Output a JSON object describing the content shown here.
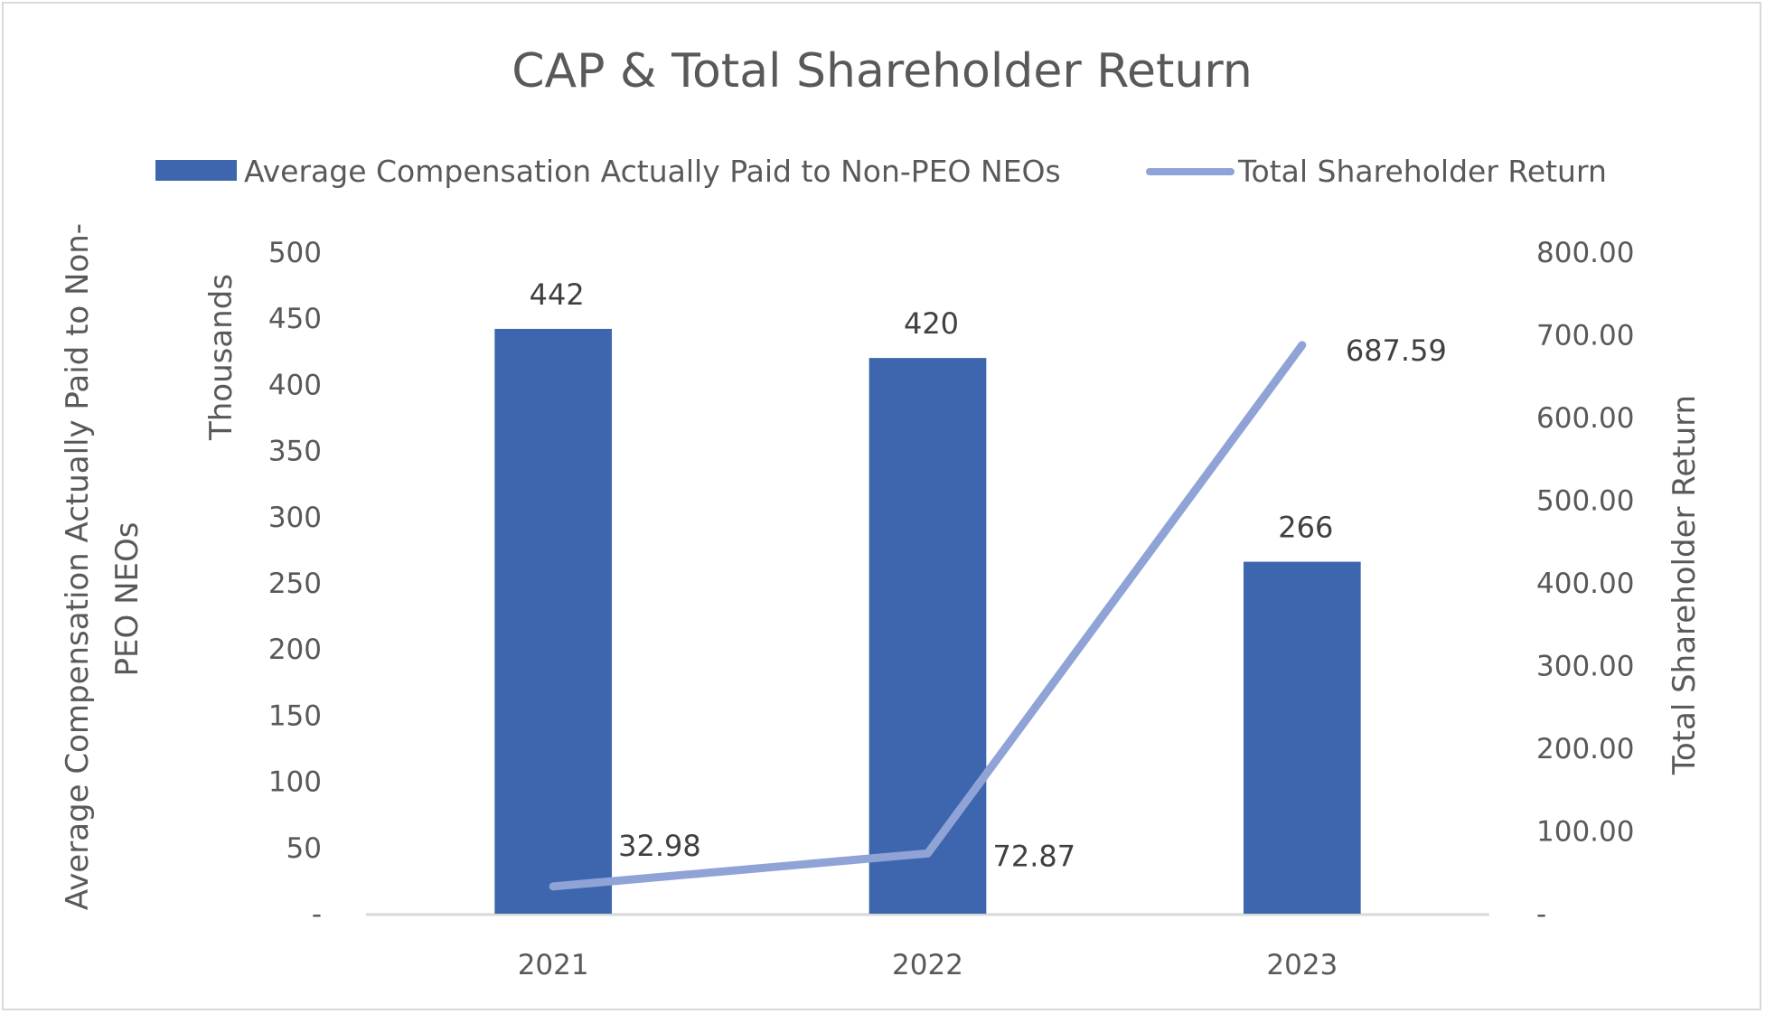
{
  "chart_data": {
    "type": "bar+line",
    "title": "CAP & Total Shareholder Return",
    "categories": [
      "2021",
      "2022",
      "2023"
    ],
    "series": [
      {
        "name": "Average Compensation Actually Paid to Non-PEO NEOs",
        "type": "bar",
        "axis": "left",
        "color": "#3d66ae",
        "values": [
          442,
          420,
          266
        ],
        "labels": [
          "442",
          "420",
          "266"
        ]
      },
      {
        "name": "Total Shareholder Return",
        "type": "line",
        "axis": "right",
        "color": "#8fa3d6",
        "values": [
          32.98,
          72.87,
          687.59
        ],
        "labels": [
          "32.98",
          "72.87",
          "687.59"
        ]
      }
    ],
    "left_axis": {
      "title": "Average Compensation Actually Paid to Non-PEO NEOs",
      "title_lines": [
        "Average Compensation Actually Paid to Non-",
        "PEO NEOs"
      ],
      "units_label": "Thousands",
      "range": [
        0,
        500
      ],
      "ticks": [
        0,
        50,
        100,
        150,
        200,
        250,
        300,
        350,
        400,
        450,
        500
      ],
      "tick_labels": [
        "-",
        "50",
        "100",
        "150",
        "200",
        "250",
        "300",
        "350",
        "400",
        "450",
        "500"
      ]
    },
    "right_axis": {
      "title": "Total Shareholder Return",
      "range": [
        0,
        800
      ],
      "ticks": [
        0,
        100,
        200,
        300,
        400,
        500,
        600,
        700,
        800
      ],
      "tick_labels": [
        "-",
        "100.00",
        "200.00",
        "300.00",
        "400.00",
        "500.00",
        "600.00",
        "700.00",
        "800.00"
      ]
    },
    "grid": false,
    "legend": "top"
  }
}
